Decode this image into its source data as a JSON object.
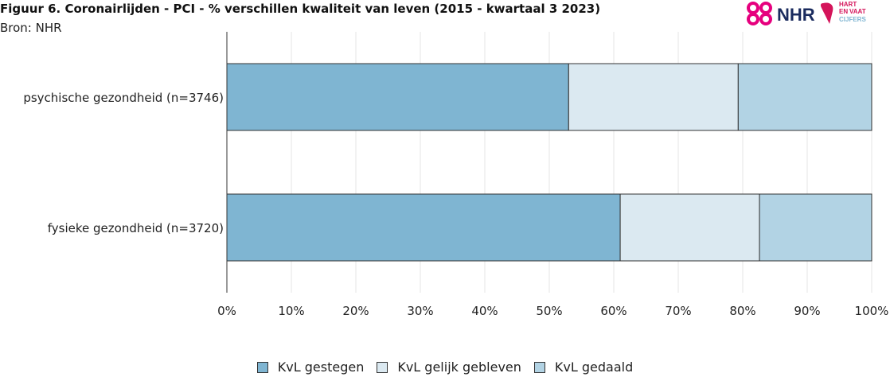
{
  "header": {
    "title": "Figuur 6. Coronairlijden - PCI - % verschillen kwaliteit van leven (2015 - kwartaal 3 2023)",
    "subtitle": "Bron: NHR"
  },
  "logo": {
    "brand_text": "NHR",
    "partner_text_line1": "HART",
    "partner_text_line2": "EN",
    "partner_text_line3": "VAAT",
    "partner_text_line4": "CIJFERS",
    "brand_color": "#e6007e",
    "partner_color": "#d4145a"
  },
  "chart_data": {
    "type": "bar",
    "orientation": "horizontal",
    "stacked": true,
    "categories": [
      "psychische gezondheid (n=3746)",
      "fysieke gezondheid (n=3720)"
    ],
    "series": [
      {
        "name": "KvL gestegen",
        "color": "#7fb5d2",
        "values": [
          53,
          61
        ]
      },
      {
        "name": "KvL gelijk gebleven",
        "color": "#dbe9f1",
        "values": [
          26.3,
          21.6
        ]
      },
      {
        "name": "KvL gedaald",
        "color": "#b2d3e4",
        "values": [
          20.7,
          17.4
        ]
      }
    ],
    "xlim": [
      0,
      100
    ],
    "xticks": [
      "0%",
      "10%",
      "20%",
      "30%",
      "40%",
      "50%",
      "60%",
      "70%",
      "80%",
      "90%",
      "100%"
    ],
    "grid": true,
    "legend_position": "bottom"
  }
}
